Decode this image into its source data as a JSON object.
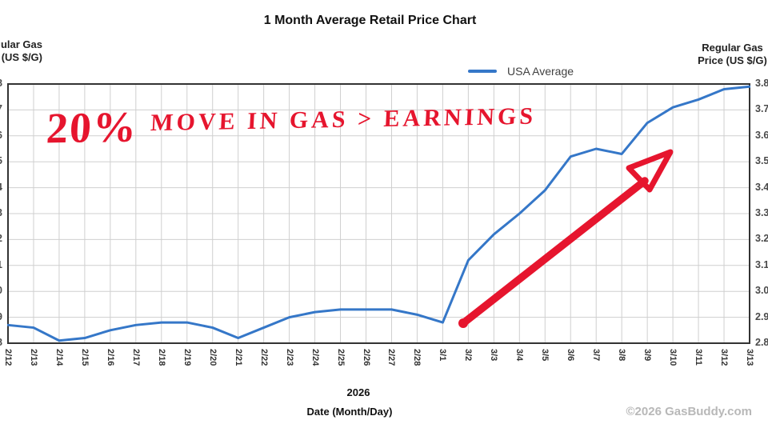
{
  "header": {
    "title": "1 Month Average Retail Price Chart"
  },
  "legend": {
    "label": "USA Average"
  },
  "axes": {
    "left_label_line1": "Regular Gas",
    "left_label_line2": "Price (US $/G)",
    "right_label_line1": "Regular Gas",
    "right_label_line2": "Price (US $/G)",
    "x_year": "2026",
    "x_title": "Date (Month/Day)"
  },
  "footer": {
    "copyright": "©2026 GasBuddy.com"
  },
  "annotation": {
    "part1": "20%",
    "part2": "MOVE IN GAS > EARNINGS",
    "full_text": "20% MOVE IN GAS > EARNINGS"
  },
  "colors": {
    "line": "#3577c8",
    "annotation_red": "#e6152e",
    "grid": "#cfcfcf",
    "plot_border": "#333333",
    "copyright_gray": "#b8b8b8"
  },
  "chart_data": {
    "type": "line",
    "title": "1 Month Average Retail Price Chart",
    "x": [
      "2/12",
      "2/13",
      "2/14",
      "2/15",
      "2/16",
      "2/17",
      "2/18",
      "2/19",
      "2/20",
      "2/21",
      "2/22",
      "2/23",
      "2/24",
      "2/25",
      "2/26",
      "2/27",
      "2/28",
      "3/1",
      "3/2",
      "3/3",
      "3/4",
      "3/5",
      "3/6",
      "3/7",
      "3/8",
      "3/9",
      "3/10",
      "3/11",
      "3/12",
      "3/13"
    ],
    "series": [
      {
        "name": "USA Average",
        "values": [
          2.87,
          2.86,
          2.81,
          2.82,
          2.85,
          2.87,
          2.88,
          2.88,
          2.86,
          2.82,
          2.86,
          2.9,
          2.92,
          2.93,
          2.93,
          2.93,
          2.91,
          2.88,
          3.12,
          3.22,
          3.3,
          3.39,
          3.52,
          3.55,
          3.53,
          3.65,
          3.71,
          3.74,
          3.78,
          3.79
        ]
      }
    ],
    "xlabel": "Date (Month/Day)",
    "xlabel_secondary": "2026",
    "ylabel": "Regular Gas Price (US $/G)",
    "ylim": [
      2.8,
      3.8
    ],
    "yticks": [
      2.8,
      2.9,
      3.0,
      3.1,
      3.2,
      3.3,
      3.4,
      3.5,
      3.6,
      3.7,
      3.8
    ],
    "grid": true,
    "legend_position": "top-center",
    "annotations": [
      "hand-written red text: 20% MOVE IN GAS > EARNINGS",
      "hand-drawn red arrow from 3/2 @ 2.88 pointing up-right toward 3/10 @ 3.5"
    ]
  }
}
